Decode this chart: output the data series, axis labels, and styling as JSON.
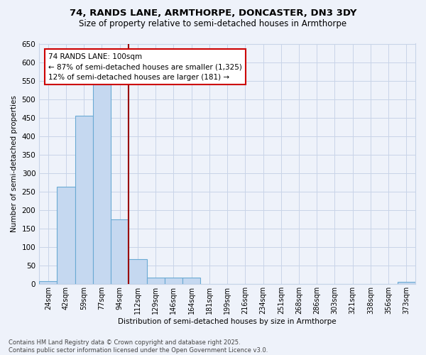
{
  "title1": "74, RANDS LANE, ARMTHORPE, DONCASTER, DN3 3DY",
  "title2": "Size of property relative to semi-detached houses in Armthorpe",
  "xlabel": "Distribution of semi-detached houses by size in Armthorpe",
  "ylabel": "Number of semi-detached properties",
  "footnote1": "Contains HM Land Registry data © Crown copyright and database right 2025.",
  "footnote2": "Contains public sector information licensed under the Open Government Licence v3.0.",
  "categories": [
    "24sqm",
    "42sqm",
    "59sqm",
    "77sqm",
    "94sqm",
    "112sqm",
    "129sqm",
    "146sqm",
    "164sqm",
    "181sqm",
    "199sqm",
    "216sqm",
    "234sqm",
    "251sqm",
    "268sqm",
    "286sqm",
    "303sqm",
    "321sqm",
    "338sqm",
    "356sqm",
    "373sqm"
  ],
  "values": [
    7,
    263,
    455,
    540,
    175,
    67,
    16,
    16,
    16,
    0,
    0,
    0,
    0,
    0,
    0,
    0,
    0,
    0,
    0,
    0,
    6
  ],
  "bar_color": "#c5d8f0",
  "bar_edge_color": "#6aaad4",
  "vline_x_index": 4,
  "annotation_text_line1": "74 RANDS LANE: 100sqm",
  "annotation_text_line2": "← 87% of semi-detached houses are smaller (1,325)",
  "annotation_text_line3": "12% of semi-detached houses are larger (181) →",
  "annotation_box_facecolor": "#ffffff",
  "annotation_box_edgecolor": "#cc0000",
  "vline_color": "#990000",
  "ylim": [
    0,
    650
  ],
  "yticks": [
    0,
    50,
    100,
    150,
    200,
    250,
    300,
    350,
    400,
    450,
    500,
    550,
    600,
    650
  ],
  "grid_color": "#c8d4e8",
  "bg_color": "#eef2fa"
}
